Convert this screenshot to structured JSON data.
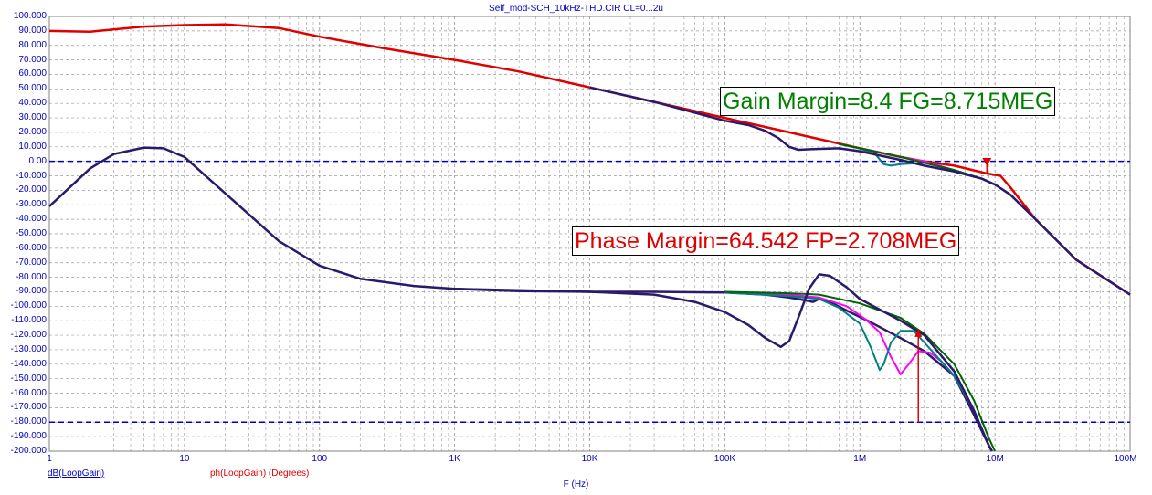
{
  "title": "Self_mod-SCH_10kHz-THD.CIR CL=0...2u",
  "x_axis_title": "F (Hz)",
  "legend_db": "dB(LoopGain)",
  "legend_ph": "ph(LoopGain) (Degrees)",
  "annotations": {
    "gain_margin": "Gain Margin=8.4 FG=8.715MEG",
    "phase_margin": "Phase Margin=64.542 FP=2.708MEG"
  },
  "colors": {
    "axis_text": "#0000c0",
    "grid": "#9a9a9a",
    "ref_line": "#0000c0",
    "red": "#e00000",
    "navy": "#2b1a6b",
    "magenta": "#ff00ff",
    "teal": "#008080",
    "green": "#006400",
    "marker": "#e00000"
  },
  "chart_data": {
    "type": "line",
    "x_scale": "log",
    "xlim": [
      1,
      100000000
    ],
    "ylim": [
      -200,
      100
    ],
    "x_tick_labels": [
      "1",
      "10",
      "100",
      "1K",
      "10K",
      "100K",
      "1M",
      "10M",
      "100M"
    ],
    "y_tick_labels": [
      "100.000",
      "90.000",
      "80.000",
      "70.000",
      "60.000",
      "50.000",
      "40.000",
      "30.000",
      "20.000",
      "10.000",
      "0.00",
      "-10.000",
      "-20.000",
      "-30.000",
      "-40.000",
      "-50.000",
      "-60.000",
      "-70.000",
      "-80.000",
      "-90.000",
      "-100.000",
      "-110.000",
      "-120.000",
      "-130.000",
      "-140.000",
      "-150.000",
      "-160.000",
      "-170.000",
      "-180.000",
      "-190.000",
      "-200.000"
    ],
    "reference_lines": [
      0,
      -180
    ],
    "markers": [
      {
        "type": "down-arrow",
        "x": 8715000,
        "y": -8.4
      },
      {
        "type": "vertical-arrow",
        "x": 2708000,
        "from": -180,
        "to": -115.5
      }
    ],
    "series": [
      {
        "color": "red",
        "width": 2.5,
        "points": [
          [
            1,
            90
          ],
          [
            2,
            89.5
          ],
          [
            5,
            93
          ],
          [
            10,
            94
          ],
          [
            20,
            94.5
          ],
          [
            50,
            92
          ],
          [
            100,
            86
          ],
          [
            300,
            78
          ],
          [
            1000,
            70
          ],
          [
            3000,
            62
          ],
          [
            10000,
            51
          ],
          [
            30000,
            41
          ],
          [
            100000,
            30
          ],
          [
            300000,
            20
          ],
          [
            1000000,
            9
          ],
          [
            2000000,
            3
          ],
          [
            3000000,
            0
          ],
          [
            5000000,
            -3
          ],
          [
            8715000,
            -8.4
          ],
          [
            11000000,
            -10
          ],
          [
            13000000,
            -18
          ],
          [
            20000000,
            -40
          ],
          [
            40000000,
            -68
          ],
          [
            100000000,
            -92
          ]
        ]
      },
      {
        "color": "magenta",
        "width": 2,
        "points": [
          [
            700000,
            12
          ],
          [
            1000000,
            9
          ],
          [
            1300000,
            7
          ],
          [
            1600000,
            5
          ],
          [
            2000000,
            3
          ],
          [
            3000000,
            0
          ],
          [
            5000000,
            -6
          ],
          [
            8000000,
            -12
          ],
          [
            10000000,
            -16
          ],
          [
            13000000,
            -23
          ],
          [
            20000000,
            -40
          ]
        ]
      },
      {
        "color": "teal",
        "width": 2,
        "points": [
          [
            700000,
            12
          ],
          [
            1000000,
            9
          ],
          [
            1300000,
            5
          ],
          [
            1500000,
            -2
          ],
          [
            1700000,
            -3
          ],
          [
            2000000,
            -2
          ],
          [
            3000000,
            -1
          ],
          [
            5000000,
            -6
          ],
          [
            8000000,
            -12
          ],
          [
            10000000,
            -16
          ],
          [
            13000000,
            -23
          ],
          [
            20000000,
            -40
          ]
        ]
      },
      {
        "color": "green",
        "width": 2,
        "points": [
          [
            700000,
            12
          ],
          [
            1000000,
            9
          ],
          [
            2000000,
            3
          ],
          [
            3000000,
            -1
          ],
          [
            5000000,
            -6
          ],
          [
            8000000,
            -12
          ],
          [
            10000000,
            -16
          ],
          [
            13000000,
            -23
          ],
          [
            20000000,
            -40
          ]
        ]
      },
      {
        "color": "navy",
        "width": 2.5,
        "points": [
          [
            1,
            -31
          ],
          [
            2,
            -5
          ],
          [
            3,
            5
          ],
          [
            5,
            9.5
          ],
          [
            7,
            9
          ],
          [
            10,
            3
          ],
          [
            20,
            -22
          ],
          [
            50,
            -55
          ],
          [
            100,
            -72
          ],
          [
            200,
            -81
          ],
          [
            500,
            -86
          ],
          [
            1000,
            -88
          ],
          [
            3000,
            -89.5
          ],
          [
            10000,
            -90
          ],
          [
            30000,
            -90
          ],
          [
            100000,
            -90.5
          ],
          [
            200000,
            -92
          ],
          [
            300000,
            -94
          ],
          [
            400000,
            -96
          ],
          [
            450000,
            -97
          ],
          [
            500000,
            -95
          ],
          [
            600000,
            -97
          ],
          [
            800000,
            -103
          ],
          [
            1200000,
            -111
          ],
          [
            2000000,
            -122
          ],
          [
            3000000,
            -131
          ],
          [
            5000000,
            -148
          ],
          [
            7000000,
            -175
          ],
          [
            9000000,
            -196
          ],
          [
            9500000,
            -200
          ]
        ]
      },
      {
        "color": "magenta",
        "width": 2,
        "points": [
          [
            100000,
            -90.5
          ],
          [
            300000,
            -92
          ],
          [
            500000,
            -94
          ],
          [
            800000,
            -100
          ],
          [
            1100000,
            -109
          ],
          [
            1400000,
            -118
          ],
          [
            1700000,
            -135
          ],
          [
            2000000,
            -147
          ],
          [
            2300000,
            -140
          ],
          [
            2708000,
            -131
          ],
          [
            3300000,
            -132
          ],
          [
            4000000,
            -138
          ],
          [
            5000000,
            -148
          ],
          [
            7000000,
            -172
          ],
          [
            9000000,
            -196
          ],
          [
            9500000,
            -200
          ]
        ]
      },
      {
        "color": "teal",
        "width": 2,
        "points": [
          [
            100000,
            -90.5
          ],
          [
            300000,
            -93
          ],
          [
            500000,
            -95
          ],
          [
            700000,
            -101
          ],
          [
            1000000,
            -112
          ],
          [
            1200000,
            -128
          ],
          [
            1400000,
            -144
          ],
          [
            1500000,
            -140
          ],
          [
            1700000,
            -125
          ],
          [
            2000000,
            -117
          ],
          [
            2500000,
            -117
          ],
          [
            3000000,
            -125
          ],
          [
            4000000,
            -138
          ],
          [
            5000000,
            -148
          ],
          [
            7000000,
            -172
          ],
          [
            9000000,
            -196
          ],
          [
            9500000,
            -200
          ]
        ]
      },
      {
        "color": "green",
        "width": 2,
        "points": [
          [
            100000,
            -90
          ],
          [
            300000,
            -91
          ],
          [
            500000,
            -92
          ],
          [
            1000000,
            -98
          ],
          [
            2000000,
            -108
          ],
          [
            3000000,
            -119
          ],
          [
            5000000,
            -140
          ],
          [
            7000000,
            -165
          ],
          [
            9000000,
            -191
          ],
          [
            10000000,
            -200
          ]
        ]
      },
      {
        "color": "navy",
        "width": 2.5,
        "points": [
          [
            1000,
            -88
          ],
          [
            10000,
            -90
          ],
          [
            30000,
            -92
          ],
          [
            60000,
            -97
          ],
          [
            100000,
            -104
          ],
          [
            150000,
            -113
          ],
          [
            200000,
            -122
          ],
          [
            260000,
            -128
          ],
          [
            300000,
            -124
          ],
          [
            360000,
            -105
          ],
          [
            420000,
            -88
          ],
          [
            500000,
            -78
          ],
          [
            600000,
            -79
          ],
          [
            800000,
            -87
          ],
          [
            1000000,
            -95
          ],
          [
            2000000,
            -110
          ],
          [
            3000000,
            -120
          ],
          [
            5000000,
            -145
          ],
          [
            7000000,
            -172
          ],
          [
            9000000,
            -196
          ],
          [
            9500000,
            -200
          ]
        ]
      },
      {
        "color": "navy",
        "width": 2.5,
        "points": [
          [
            10000,
            51
          ],
          [
            30000,
            41
          ],
          [
            100000,
            28
          ],
          [
            150000,
            25
          ],
          [
            200000,
            21
          ],
          [
            250000,
            16
          ],
          [
            300000,
            10
          ],
          [
            350000,
            8
          ],
          [
            450000,
            8.5
          ],
          [
            700000,
            9
          ],
          [
            1000000,
            7
          ],
          [
            2000000,
            1
          ],
          [
            3000000,
            -3
          ],
          [
            5000000,
            -7
          ],
          [
            8000000,
            -12
          ],
          [
            10000000,
            -16
          ],
          [
            13000000,
            -23
          ],
          [
            20000000,
            -40
          ],
          [
            40000000,
            -68
          ],
          [
            100000000,
            -92
          ]
        ]
      }
    ]
  }
}
